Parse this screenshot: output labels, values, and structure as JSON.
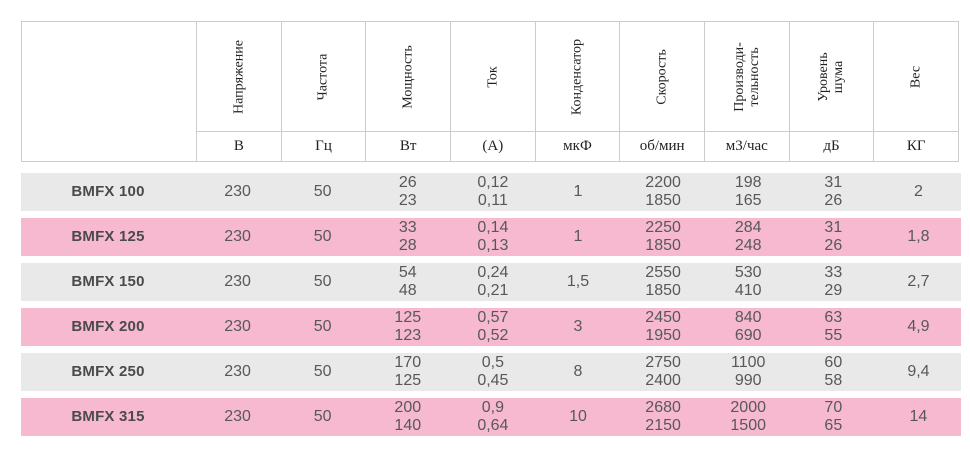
{
  "table": {
    "columns": [
      {
        "label": "Напряжение",
        "unit": "В"
      },
      {
        "label": "Частота",
        "unit": "Гц"
      },
      {
        "label": "Мощность",
        "unit": "Вт"
      },
      {
        "label": "Ток",
        "unit": "(А)"
      },
      {
        "label": "Конденсатор",
        "unit": "мкФ"
      },
      {
        "label": "Скорость",
        "unit": "об/мин"
      },
      {
        "label": "Производи-\nтельность",
        "unit": "м3/час"
      },
      {
        "label": "Уровень\nшума",
        "unit": "дБ"
      },
      {
        "label": "Вес",
        "unit": "КГ"
      }
    ],
    "rows": [
      {
        "model": "BMFX 100",
        "values": [
          "230",
          "50",
          "26\n23",
          "0,12\n0,11",
          "1",
          "2200\n1850",
          "198\n165",
          "31\n26",
          "2"
        ]
      },
      {
        "model": "BMFX 125",
        "values": [
          "230",
          "50",
          "33\n28",
          "0,14\n0,13",
          "1",
          "2250\n1850",
          "284\n248",
          "31\n26",
          "1,8"
        ]
      },
      {
        "model": "BMFX 150",
        "values": [
          "230",
          "50",
          "54\n48",
          "0,24\n0,21",
          "1,5",
          "2550\n1850",
          "530\n410",
          "33\n29",
          "2,7"
        ]
      },
      {
        "model": "BMFX 200",
        "values": [
          "230",
          "50",
          "125\n123",
          "0,57\n0,52",
          "3",
          "2450\n1950",
          "840\n690",
          "63\n55",
          "4,9"
        ]
      },
      {
        "model": "BMFX 250",
        "values": [
          "230",
          "50",
          "170\n125",
          "0,5\n0,45",
          "8",
          "2750\n2400",
          "1100\n990",
          "60\n58",
          "9,4"
        ]
      },
      {
        "model": "BMFX 315",
        "values": [
          "230",
          "50",
          "200\n140",
          "0,9\n0,64",
          "10",
          "2680\n2150",
          "2000\n1500",
          "70\n65",
          "14"
        ]
      }
    ],
    "colors": {
      "stripe_gray": "#e9e9e9",
      "stripe_pink": "#f6b9d0",
      "border": "#cccccc",
      "value_text": "#58585a",
      "model_text": "#4a4a4c",
      "header_text": "#222222",
      "background": "#ffffff"
    }
  }
}
